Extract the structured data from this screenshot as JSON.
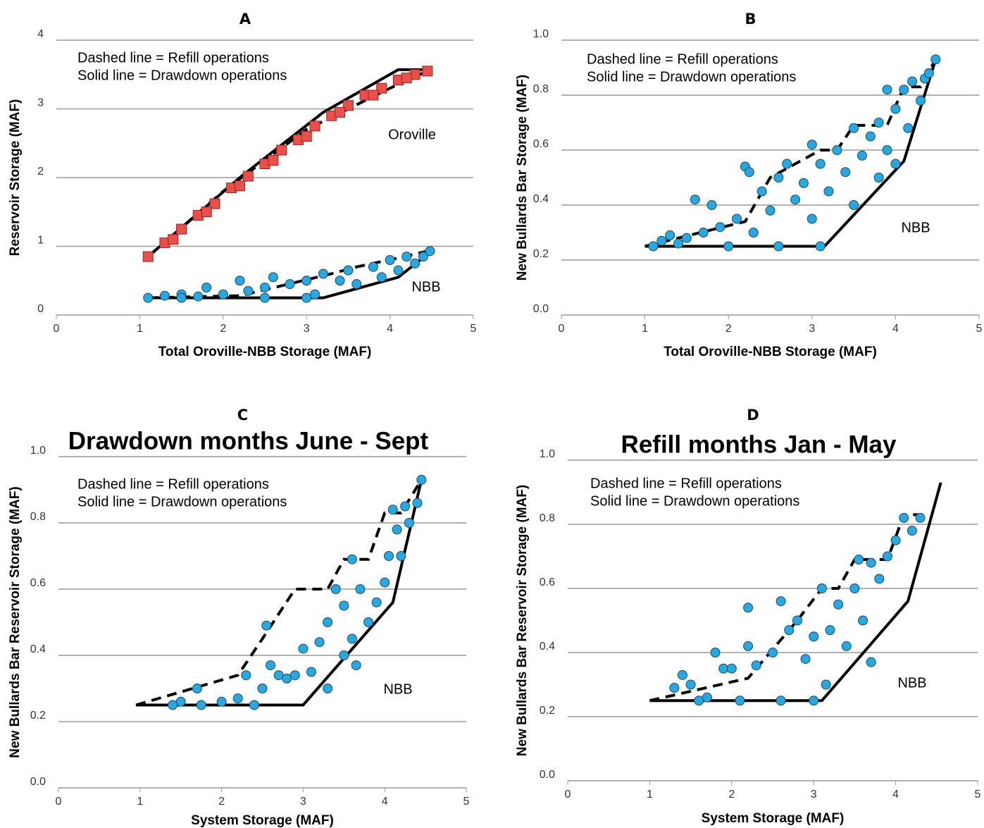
{
  "chart_data": [
    {
      "type": "scatter",
      "panel": "A",
      "ylabel": "Reservoir Storage (MAF)",
      "xlabel": "Total Oroville-NBB Storage (MAF)",
      "notes": [
        "Dashed line = Refill operations",
        "Solid line = Drawdown operations"
      ],
      "labels": [
        "Oroville",
        "NBB"
      ],
      "xlim": [
        0,
        5
      ],
      "ylim": [
        0,
        4
      ],
      "xticks": [
        0,
        1,
        2,
        3,
        4,
        5
      ],
      "yticks": [
        0,
        1,
        2,
        3,
        4
      ],
      "grid": true,
      "series": [
        {
          "marker": "square",
          "color": "#e8504a",
          "x": [
            1.1,
            1.3,
            1.5,
            1.7,
            1.9,
            2.1,
            2.3,
            2.5,
            2.7,
            2.9,
            3.1,
            3.3,
            3.5,
            3.7,
            3.9,
            4.1,
            4.3,
            4.45,
            1.4,
            1.8,
            2.2,
            2.6,
            3.0,
            3.4,
            3.8,
            4.2
          ],
          "values": [
            0.85,
            1.05,
            1.25,
            1.45,
            1.62,
            1.85,
            2.02,
            2.2,
            2.4,
            2.55,
            2.75,
            2.9,
            3.05,
            3.2,
            3.3,
            3.42,
            3.5,
            3.55,
            1.1,
            1.5,
            1.88,
            2.25,
            2.6,
            2.95,
            3.2,
            3.45
          ]
        },
        {
          "marker": "circle",
          "color": "#29a8e0",
          "x": [
            1.1,
            1.3,
            1.5,
            1.7,
            1.8,
            2.0,
            2.2,
            2.3,
            2.5,
            2.6,
            2.8,
            3.0,
            3.1,
            3.2,
            3.4,
            3.5,
            3.6,
            3.8,
            3.9,
            4.0,
            4.1,
            4.2,
            4.3,
            4.4,
            4.48,
            2.5,
            3.0,
            1.5
          ],
          "values": [
            0.25,
            0.28,
            0.3,
            0.27,
            0.4,
            0.3,
            0.5,
            0.35,
            0.4,
            0.55,
            0.45,
            0.5,
            0.3,
            0.6,
            0.5,
            0.65,
            0.45,
            0.7,
            0.55,
            0.8,
            0.65,
            0.85,
            0.75,
            0.85,
            0.93,
            0.25,
            0.25,
            0.25
          ]
        },
        {
          "line": "dashed",
          "color": "#000000",
          "x": [
            1.1,
            2,
            3,
            4,
            4.45
          ],
          "values": [
            0.85,
            1.8,
            2.7,
            3.3,
            3.55
          ]
        },
        {
          "line": "solid",
          "color": "#000000",
          "x": [
            1.1,
            2.2,
            3.2,
            4.1,
            4.5
          ],
          "values": [
            0.85,
            2.0,
            2.95,
            3.57,
            3.57
          ]
        },
        {
          "line": "dashed",
          "color": "#000000",
          "x": [
            1.1,
            2.2,
            3.3,
            3.6,
            4.1,
            4.45
          ],
          "values": [
            0.25,
            0.28,
            0.6,
            0.7,
            0.83,
            0.93
          ]
        },
        {
          "line": "solid",
          "color": "#000000",
          "x": [
            1.1,
            3.2,
            4.1,
            4.5
          ],
          "values": [
            0.25,
            0.25,
            0.55,
            0.93
          ]
        }
      ]
    },
    {
      "type": "scatter",
      "panel": "B",
      "ylabel": "New Bullards Bar Storage (MAF)",
      "xlabel": "Total Oroville-NBB Storage (MAF)",
      "notes": [
        "Dashed line = Refill operations",
        "Solid line = Drawdown operations"
      ],
      "labels": [
        "NBB"
      ],
      "xlim": [
        0,
        5
      ],
      "ylim": [
        0,
        1
      ],
      "xticks": [
        0,
        1,
        2,
        3,
        4,
        5
      ],
      "yticks": [
        {
          "value": 0,
          "label": "0.0"
        },
        0.2,
        0.4,
        0.6,
        0.8,
        {
          "value": 1,
          "label": "1.0"
        }
      ],
      "grid": true,
      "series": [
        {
          "marker": "circle",
          "color": "#29a8e0",
          "x": [
            1.1,
            1.2,
            1.3,
            1.4,
            1.5,
            1.6,
            1.7,
            1.8,
            1.9,
            2.0,
            2.1,
            2.2,
            2.25,
            2.3,
            2.4,
            2.5,
            2.6,
            2.6,
            2.7,
            2.8,
            2.9,
            3.0,
            3.0,
            3.1,
            3.1,
            3.2,
            3.3,
            3.4,
            3.5,
            3.5,
            3.6,
            3.7,
            3.8,
            3.8,
            3.9,
            3.9,
            4.0,
            4.0,
            4.1,
            4.15,
            4.2,
            4.3,
            4.35,
            4.4,
            4.48
          ],
          "values": [
            0.25,
            0.27,
            0.29,
            0.26,
            0.28,
            0.42,
            0.3,
            0.4,
            0.32,
            0.25,
            0.35,
            0.54,
            0.52,
            0.3,
            0.45,
            0.38,
            0.5,
            0.25,
            0.55,
            0.42,
            0.48,
            0.62,
            0.35,
            0.55,
            0.25,
            0.45,
            0.6,
            0.52,
            0.68,
            0.4,
            0.58,
            0.65,
            0.5,
            0.7,
            0.6,
            0.82,
            0.75,
            0.55,
            0.82,
            0.68,
            0.85,
            0.78,
            0.86,
            0.88,
            0.93
          ]
        },
        {
          "line": "dashed",
          "color": "#000000",
          "x": [
            1,
            2.2,
            2.5,
            3.1,
            3.3,
            3.5,
            3.9,
            4.1,
            4.3,
            4.48
          ],
          "values": [
            0.25,
            0.34,
            0.5,
            0.6,
            0.6,
            0.69,
            0.69,
            0.83,
            0.83,
            0.93
          ]
        },
        {
          "line": "solid",
          "color": "#000000",
          "x": [
            1,
            3.15,
            4.1,
            4.48
          ],
          "values": [
            0.25,
            0.25,
            0.56,
            0.93
          ]
        }
      ]
    },
    {
      "type": "scatter",
      "panel": "C",
      "title": "Drawdown months June - Sept",
      "ylabel": "New Bullards Bar Reservoir Storage (MAF)",
      "xlabel": "System Storage (MAF)",
      "notes": [
        "Dashed line = Refill operations",
        "Solid line = Drawdown operations"
      ],
      "labels": [
        "NBB"
      ],
      "xlim": [
        0,
        5
      ],
      "ylim": [
        0,
        1
      ],
      "xticks": [
        0,
        1,
        2,
        3,
        4,
        5
      ],
      "yticks": [
        {
          "value": 0,
          "label": "0.0"
        },
        0.2,
        0.4,
        0.6,
        0.8,
        {
          "value": 1,
          "label": "1.0"
        }
      ],
      "grid": true,
      "series": [
        {
          "marker": "circle",
          "color": "#29a8e0",
          "x": [
            1.4,
            1.5,
            1.7,
            1.75,
            2.0,
            2.2,
            2.3,
            2.4,
            2.5,
            2.55,
            2.6,
            2.7,
            2.8,
            2.9,
            3.0,
            3.1,
            3.2,
            3.3,
            3.3,
            3.4,
            3.5,
            3.5,
            3.6,
            3.65,
            3.7,
            3.8,
            3.9,
            4.0,
            4.05,
            4.1,
            4.15,
            4.2,
            4.25,
            4.3,
            4.4,
            4.45,
            3.6
          ],
          "values": [
            0.25,
            0.26,
            0.3,
            0.25,
            0.26,
            0.27,
            0.34,
            0.25,
            0.3,
            0.49,
            0.37,
            0.34,
            0.33,
            0.34,
            0.42,
            0.35,
            0.44,
            0.5,
            0.3,
            0.6,
            0.55,
            0.4,
            0.45,
            0.37,
            0.6,
            0.5,
            0.56,
            0.62,
            0.7,
            0.84,
            0.78,
            0.7,
            0.85,
            0.8,
            0.86,
            0.93,
            0.69
          ]
        },
        {
          "line": "dashed",
          "color": "#000000",
          "x": [
            0.95,
            2.2,
            2.5,
            2.9,
            3.3,
            3.5,
            3.8,
            4.0,
            4.2,
            4.45
          ],
          "values": [
            0.25,
            0.34,
            0.45,
            0.6,
            0.6,
            0.69,
            0.69,
            0.83,
            0.83,
            0.93
          ]
        },
        {
          "line": "solid",
          "color": "#000000",
          "x": [
            0.95,
            3.0,
            4.1,
            4.45
          ],
          "values": [
            0.25,
            0.25,
            0.56,
            0.93
          ]
        }
      ]
    },
    {
      "type": "scatter",
      "panel": "D",
      "title": "Refill months Jan - May",
      "ylabel": "New Bullards Bar Reservoir Storage (MAF)",
      "xlabel": "System Storage (MAF)",
      "notes": [
        "Dashed line = Refill operations",
        "Solid line = Drawdown operations"
      ],
      "labels": [
        "NBB"
      ],
      "xlim": [
        0,
        5
      ],
      "ylim": [
        0,
        1
      ],
      "xticks": [
        0,
        1,
        2,
        3,
        4,
        5
      ],
      "yticks": [
        {
          "value": 0,
          "label": "0.0"
        },
        0.2,
        0.4,
        0.6,
        0.8,
        {
          "value": 1,
          "label": "1.0"
        }
      ],
      "grid": true,
      "series": [
        {
          "marker": "circle",
          "color": "#29a8e0",
          "x": [
            1.4,
            1.3,
            1.5,
            1.6,
            1.7,
            1.8,
            1.9,
            2.0,
            2.1,
            2.2,
            2.2,
            2.3,
            2.5,
            2.6,
            2.6,
            2.7,
            2.8,
            2.9,
            3.0,
            3.0,
            3.1,
            3.15,
            3.2,
            3.3,
            3.4,
            3.5,
            3.6,
            3.7,
            3.7,
            3.8,
            3.9,
            4.0,
            4.1,
            4.2,
            4.3,
            3.55
          ],
          "values": [
            0.33,
            0.29,
            0.3,
            0.25,
            0.26,
            0.4,
            0.35,
            0.35,
            0.25,
            0.42,
            0.54,
            0.36,
            0.4,
            0.56,
            0.25,
            0.47,
            0.5,
            0.38,
            0.45,
            0.25,
            0.6,
            0.3,
            0.47,
            0.55,
            0.42,
            0.6,
            0.5,
            0.68,
            0.37,
            0.63,
            0.7,
            0.75,
            0.82,
            0.78,
            0.82,
            0.69
          ]
        },
        {
          "line": "dashed",
          "color": "#000000",
          "x": [
            1,
            2.2,
            2.8,
            3.1,
            3.3,
            3.5,
            3.9,
            4.1,
            4.35
          ],
          "values": [
            0.25,
            0.32,
            0.5,
            0.6,
            0.6,
            0.69,
            0.69,
            0.83,
            0.83
          ]
        },
        {
          "line": "solid",
          "color": "#000000",
          "x": [
            1,
            3.1,
            4.15,
            4.55
          ],
          "values": [
            0.25,
            0.25,
            0.56,
            0.93
          ]
        }
      ]
    }
  ]
}
